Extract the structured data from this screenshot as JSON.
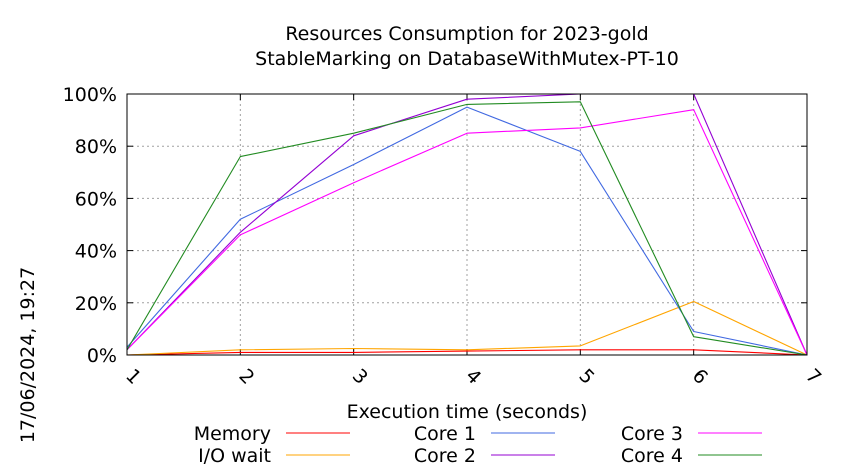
{
  "chart_data": {
    "type": "line",
    "title": "Resources Consumption for 2023-gold",
    "subtitle": "StableMarking on DatabaseWithMutex-PT-10",
    "xlabel": "Execution time (seconds)",
    "ylabel": "",
    "side_label": "17/06/2024, 19:27",
    "x": [
      1,
      2,
      3,
      4,
      5,
      6,
      7
    ],
    "x_tick_labels": [
      "1",
      "2",
      "3",
      "4",
      "5",
      "6",
      "7"
    ],
    "xlim": [
      1,
      7
    ],
    "ylim": [
      0,
      100
    ],
    "y_ticks": [
      0,
      20,
      40,
      60,
      80,
      100
    ],
    "y_tick_labels": [
      "0%",
      "20%",
      "40%",
      "60%",
      "80%",
      "100%"
    ],
    "grid": true,
    "legend_position": "bottom",
    "series": [
      {
        "name": "Memory",
        "color": "#ff0000",
        "values": [
          0,
          1,
          1,
          1.5,
          2,
          2,
          0
        ]
      },
      {
        "name": "I/O wait",
        "color": "#ffa500",
        "values": [
          0,
          2,
          2.5,
          2,
          3.5,
          20.5,
          0
        ]
      },
      {
        "name": "Core 1",
        "color": "#4169e1",
        "values": [
          3,
          52,
          73,
          95,
          78,
          9,
          0
        ]
      },
      {
        "name": "Core 2",
        "color": "#9400d3",
        "values": [
          2,
          47,
          84,
          98,
          100,
          100,
          0
        ]
      },
      {
        "name": "Core 3",
        "color": "#ff00ff",
        "values": [
          2,
          46,
          66,
          85,
          87,
          94,
          0
        ]
      },
      {
        "name": "Core 4",
        "color": "#228b22",
        "values": [
          2,
          76,
          85,
          96,
          97,
          7,
          0
        ]
      }
    ]
  }
}
